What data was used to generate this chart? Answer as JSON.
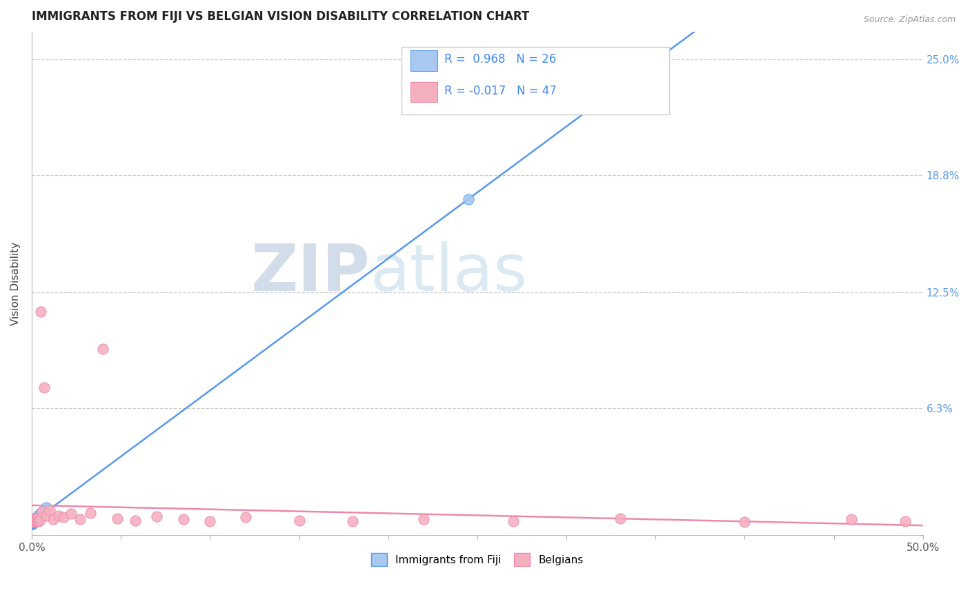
{
  "title": "IMMIGRANTS FROM FIJI VS BELGIAN VISION DISABILITY CORRELATION CHART",
  "source": "Source: ZipAtlas.com",
  "ylabel": "Vision Disability",
  "fiji_color": "#a8c8f0",
  "belgian_color": "#f5b0c0",
  "fiji_line_color": "#5599ee",
  "belgian_line_color": "#ee88aa",
  "background_color": "#ffffff",
  "legend_r1": "R =  0.968",
  "legend_n1": "N = 26",
  "legend_r2": "R = -0.017",
  "legend_n2": "N = 47",
  "fiji_x": [
    0.0002,
    0.0003,
    0.0004,
    0.0005,
    0.0005,
    0.0006,
    0.0007,
    0.0008,
    0.0009,
    0.001,
    0.0011,
    0.0012,
    0.0013,
    0.0014,
    0.0015,
    0.0017,
    0.0019,
    0.0022,
    0.0025,
    0.003,
    0.0035,
    0.004,
    0.005,
    0.006,
    0.008,
    0.245
  ],
  "fiji_y": [
    0.0008,
    0.001,
    0.0012,
    0.0014,
    0.0013,
    0.0015,
    0.0016,
    0.0018,
    0.0019,
    0.002,
    0.0021,
    0.0022,
    0.0024,
    0.0025,
    0.0027,
    0.0029,
    0.0032,
    0.0036,
    0.0039,
    0.0045,
    0.005,
    0.0056,
    0.0068,
    0.0078,
    0.01,
    0.175
  ],
  "belgian_x": [
    0.0002,
    0.0003,
    0.0004,
    0.0005,
    0.0006,
    0.0007,
    0.0008,
    0.0009,
    0.001,
    0.0012,
    0.0014,
    0.0016,
    0.0018,
    0.002,
    0.0022,
    0.0025,
    0.0028,
    0.0032,
    0.0036,
    0.004,
    0.0045,
    0.005,
    0.006,
    0.007,
    0.008,
    0.01,
    0.012,
    0.015,
    0.018,
    0.022,
    0.027,
    0.033,
    0.04,
    0.048,
    0.058,
    0.07,
    0.085,
    0.1,
    0.12,
    0.15,
    0.18,
    0.22,
    0.27,
    0.33,
    0.4,
    0.46,
    0.49
  ],
  "belgian_y": [
    0.003,
    0.0025,
    0.0035,
    0.0028,
    0.0032,
    0.0026,
    0.0038,
    0.0022,
    0.004,
    0.0029,
    0.0033,
    0.0027,
    0.0036,
    0.0031,
    0.0024,
    0.0038,
    0.0028,
    0.0034,
    0.0042,
    0.0025,
    0.0031,
    0.115,
    0.0078,
    0.074,
    0.0055,
    0.0085,
    0.0035,
    0.0055,
    0.0045,
    0.0065,
    0.0035,
    0.007,
    0.095,
    0.004,
    0.003,
    0.005,
    0.0035,
    0.0025,
    0.0045,
    0.003,
    0.0025,
    0.0035,
    0.0025,
    0.004,
    0.0022,
    0.0035,
    0.0025
  ],
  "xlim": [
    0.0,
    0.5
  ],
  "ylim": [
    -0.005,
    0.265
  ],
  "yticks": [
    0.0,
    0.063,
    0.125,
    0.188,
    0.25
  ],
  "ytick_labels": [
    "",
    "6.3%",
    "12.5%",
    "18.8%",
    "25.0%"
  ]
}
